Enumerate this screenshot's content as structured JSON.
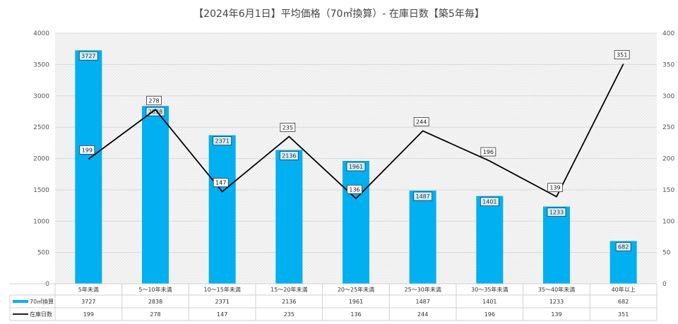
{
  "chart_data": {
    "type": "bar",
    "title": "【2024年6月1日】平均価格（70㎡換算）- 在庫日数【築5年毎】",
    "categories": [
      "5年未満",
      "5～10年未満",
      "10～15年未満",
      "15～20年未満",
      "20～25年未満",
      "25～30年未満",
      "30～35年未満",
      "35～40年未満",
      "40年以上"
    ],
    "series": [
      {
        "name": "70㎡換算",
        "type": "bar",
        "axis": "left",
        "color": "#00b0f0",
        "values": [
          3727,
          2838,
          2371,
          2136,
          1961,
          1487,
          1401,
          1233,
          682
        ]
      },
      {
        "name": "在庫日数",
        "type": "line",
        "axis": "right",
        "color": "#000000",
        "values": [
          199,
          278,
          147,
          235,
          136,
          244,
          196,
          139,
          351
        ]
      }
    ],
    "y_left": {
      "min": 0,
      "max": 4000,
      "ticks": [
        "0",
        "500",
        "1000",
        "1500",
        "2000",
        "2500",
        "3000",
        "3500",
        "4000"
      ]
    },
    "y_right": {
      "min": 0,
      "max": 400,
      "ticks": [
        "0",
        "50",
        "100",
        "150",
        "200",
        "250",
        "300",
        "350",
        "400"
      ]
    },
    "grid": true,
    "legend": "data-table-bottom"
  }
}
